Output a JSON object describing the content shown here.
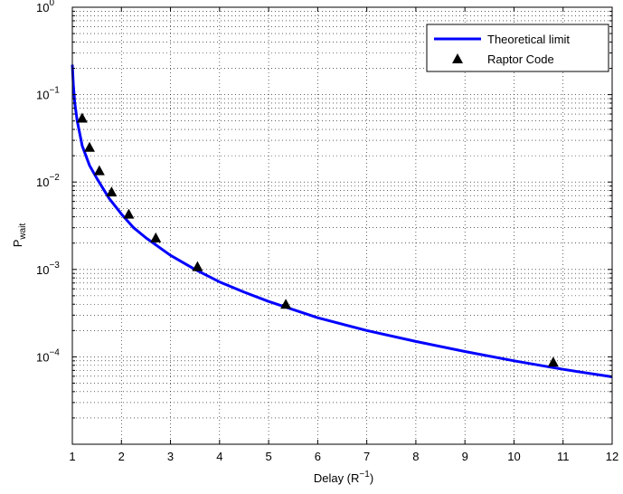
{
  "chart_data": {
    "type": "line",
    "xlabel": "Delay (R",
    "xlabel_sup": "−1",
    "xlabel_close": ")",
    "ylabel": "P",
    "ylabel_sub": "wait",
    "xlim": [
      1,
      12
    ],
    "ylim": [
      1e-05,
      1
    ],
    "yscale": "log",
    "grid": true,
    "legend_position": "top-right",
    "x_ticks": [
      1,
      2,
      3,
      4,
      5,
      6,
      7,
      8,
      9,
      10,
      11,
      12
    ],
    "y_ticks": [
      {
        "value": 0.0001,
        "base": "10",
        "exp": "−4"
      },
      {
        "value": 0.001,
        "base": "10",
        "exp": "−3"
      },
      {
        "value": 0.01,
        "base": "10",
        "exp": "−2"
      },
      {
        "value": 0.1,
        "base": "10",
        "exp": "−1"
      },
      {
        "value": 1,
        "base": "10",
        "exp": "0"
      }
    ],
    "series": [
      {
        "name": "Theoretical limit",
        "style": "line",
        "color": "#0000ff",
        "x": [
          1.0,
          1.02,
          1.05,
          1.1,
          1.2,
          1.35,
          1.5,
          1.75,
          2.0,
          2.25,
          2.5,
          3.0,
          3.5,
          4.0,
          4.5,
          5.0,
          6.0,
          7.0,
          8.0,
          9.0,
          10.0,
          11.0,
          12.0
        ],
        "y": [
          0.22,
          0.13,
          0.08,
          0.05,
          0.026,
          0.0155,
          0.011,
          0.0065,
          0.0043,
          0.003,
          0.0023,
          0.00145,
          0.001,
          0.00072,
          0.00055,
          0.00043,
          0.00028,
          0.0002,
          0.00015,
          0.000115,
          9e-05,
          7.2e-05,
          5.9e-05
        ]
      },
      {
        "name": "Raptor Code",
        "style": "marker",
        "marker": "triangle",
        "color": "#000000",
        "x": [
          1.2,
          1.35,
          1.55,
          1.8,
          2.15,
          2.7,
          3.55,
          5.35,
          10.8
        ],
        "y": [
          0.054,
          0.025,
          0.0135,
          0.0077,
          0.0043,
          0.0023,
          0.00108,
          0.0004,
          8.7e-05
        ]
      }
    ]
  }
}
